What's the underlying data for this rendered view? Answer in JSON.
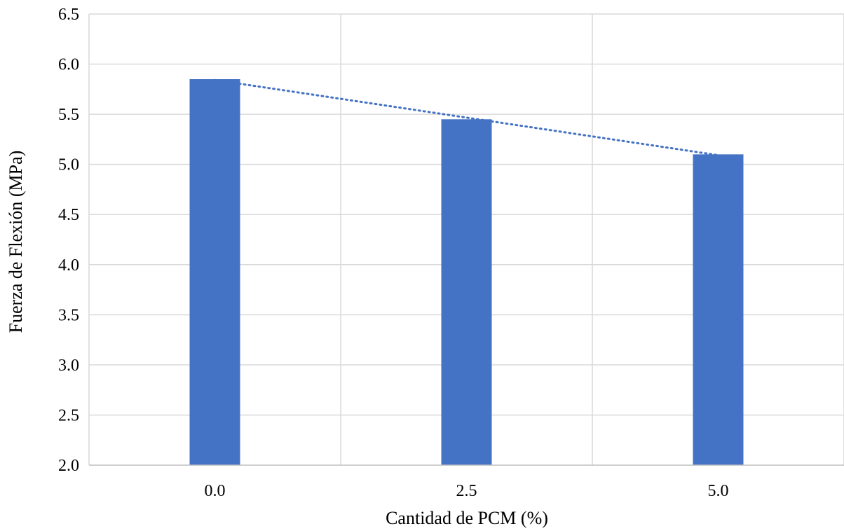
{
  "chart_data": {
    "type": "bar",
    "categories": [
      "0.0",
      "2.5",
      "5.0"
    ],
    "values": [
      5.85,
      5.45,
      5.1
    ],
    "xlabel": "Cantidad de PCM (%)",
    "ylabel": "Fuerza de Flexión (MPa)",
    "ylim": [
      2.0,
      6.5
    ],
    "yticks": [
      "2.0",
      "2.5",
      "3.0",
      "3.5",
      "4.0",
      "4.5",
      "5.0",
      "5.5",
      "6.0",
      "6.5"
    ],
    "grid": true,
    "bar_color": "#4472c4",
    "trendline": {
      "type": "linear",
      "style": "dotted",
      "color": "#4472c4"
    }
  }
}
